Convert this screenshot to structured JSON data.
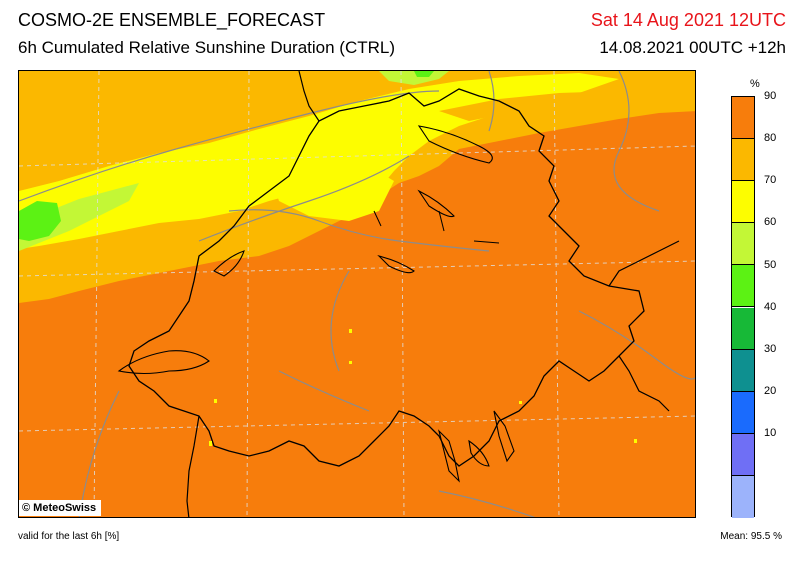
{
  "header": {
    "title": "COSMO-2E ENSEMBLE_FORECAST",
    "subtitle": "6h Cumulated Relative Sunshine Duration (CTRL)",
    "valid_time": "Sat 14 Aug 2021 12UTC",
    "run_time": "14.08.2021 00UTC +12h",
    "valid_time_color": "#e8141a"
  },
  "map": {
    "credit": "© MeteoSwiss",
    "region": "Switzerland and surroundings",
    "dominant_class": "90-100",
    "colors": {
      "c90": "#f77d0c",
      "c80": "#fbb800",
      "c70": "#fdfd00",
      "c60": "#c3f736",
      "c50": "#5cf214",
      "c40": "#17b937",
      "c30": "#0e9090",
      "c20": "#1a6bfd",
      "c10": "#6f6ff5",
      "c0": "#9cb3fb",
      "borders": "#000000",
      "rivers": "#8c8c8c",
      "grid": "#d0d0d0"
    }
  },
  "legend": {
    "unit": "%",
    "labels": [
      "90",
      "80",
      "70",
      "60",
      "50",
      "40",
      "30",
      "20",
      "10"
    ],
    "colors": [
      "#f77d0c",
      "#fbb800",
      "#fdfd00",
      "#c3f736",
      "#5cf214",
      "#17b937",
      "#0e9090",
      "#1a6bfd",
      "#6f6ff5",
      "#9cb3fb"
    ]
  },
  "footer": {
    "validity": "valid for the last 6h [%]",
    "mean": "Mean:  95.5 %"
  }
}
